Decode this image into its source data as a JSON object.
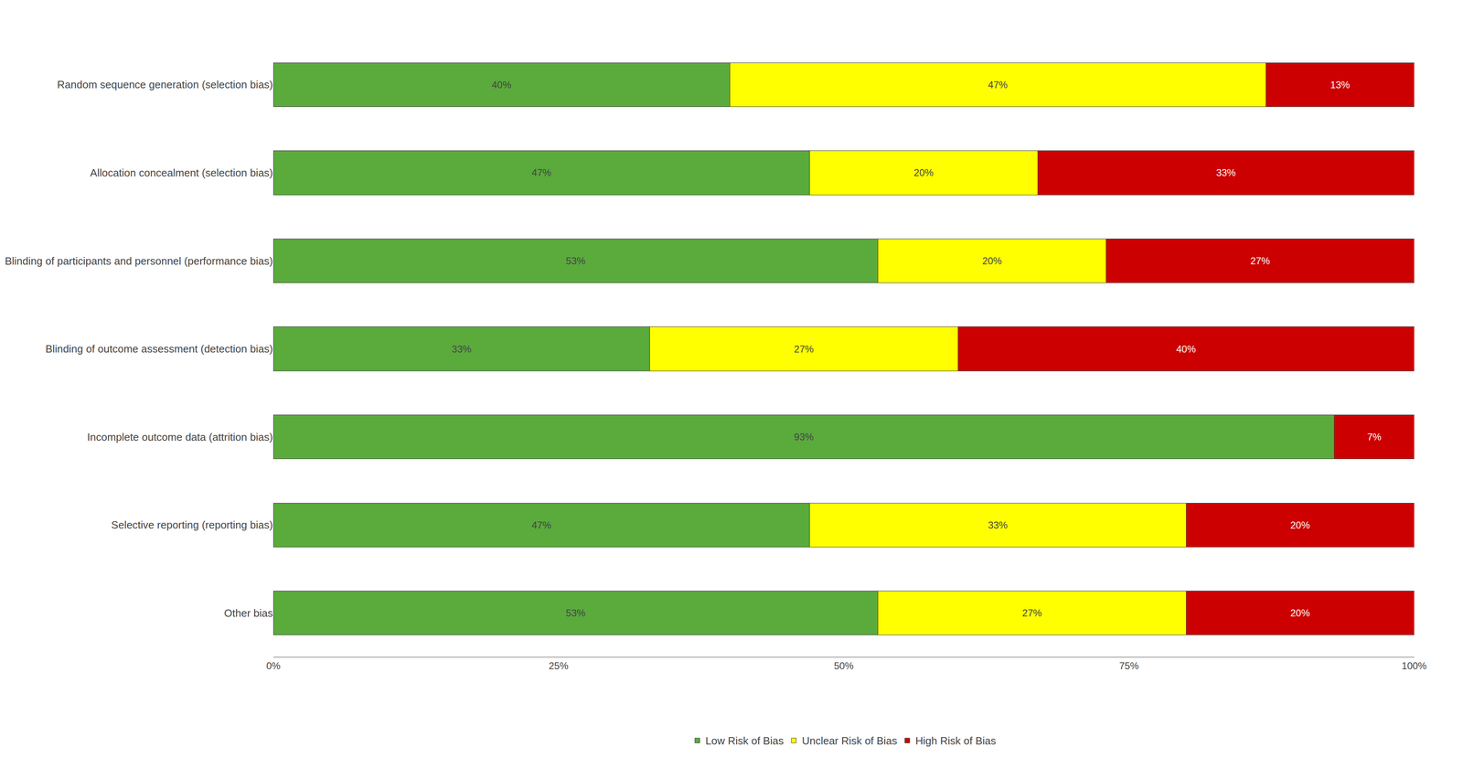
{
  "chart_data": {
    "type": "bar",
    "orientation": "horizontal",
    "stacked": true,
    "categories": [
      "Random sequence generation (selection bias)",
      "Allocation concealment (selection bias)",
      "Blinding of participants and personnel (performance bias)",
      "Blinding of outcome assessment (detection bias)",
      "Incomplete outcome data (attrition bias)",
      "Selective reporting (reporting bias)",
      "Other bias"
    ],
    "series": [
      {
        "name": "Low Risk of Bias",
        "color": "#5aaa3c",
        "values": [
          40,
          47,
          53,
          33,
          93,
          47,
          53
        ],
        "value_labels": [
          "40%",
          "47%",
          "53%",
          "33%",
          "93%",
          "47%",
          "53%"
        ]
      },
      {
        "name": "Unclear Risk of Bias",
        "color": "#ffff00",
        "values": [
          47,
          20,
          20,
          27,
          0,
          33,
          27
        ],
        "value_labels": [
          "47%",
          "20%",
          "20%",
          "27%",
          null,
          "33%",
          "27%"
        ]
      },
      {
        "name": "High Risk of Bias",
        "color": "#cc0000",
        "values": [
          13,
          33,
          27,
          40,
          7,
          20,
          20
        ],
        "value_labels": [
          "13%",
          "33%",
          "27%",
          "40%",
          "7%",
          "20%",
          "20%"
        ]
      }
    ],
    "xlim": [
      0,
      100
    ],
    "xticks": [
      {
        "value": 0,
        "label": "0%"
      },
      {
        "value": 25,
        "label": "25%"
      },
      {
        "value": 50,
        "label": "50%"
      },
      {
        "value": 75,
        "label": "75%"
      },
      {
        "value": 100,
        "label": "100%"
      }
    ],
    "grid": false,
    "legend": "bottom",
    "data_labels": true
  }
}
